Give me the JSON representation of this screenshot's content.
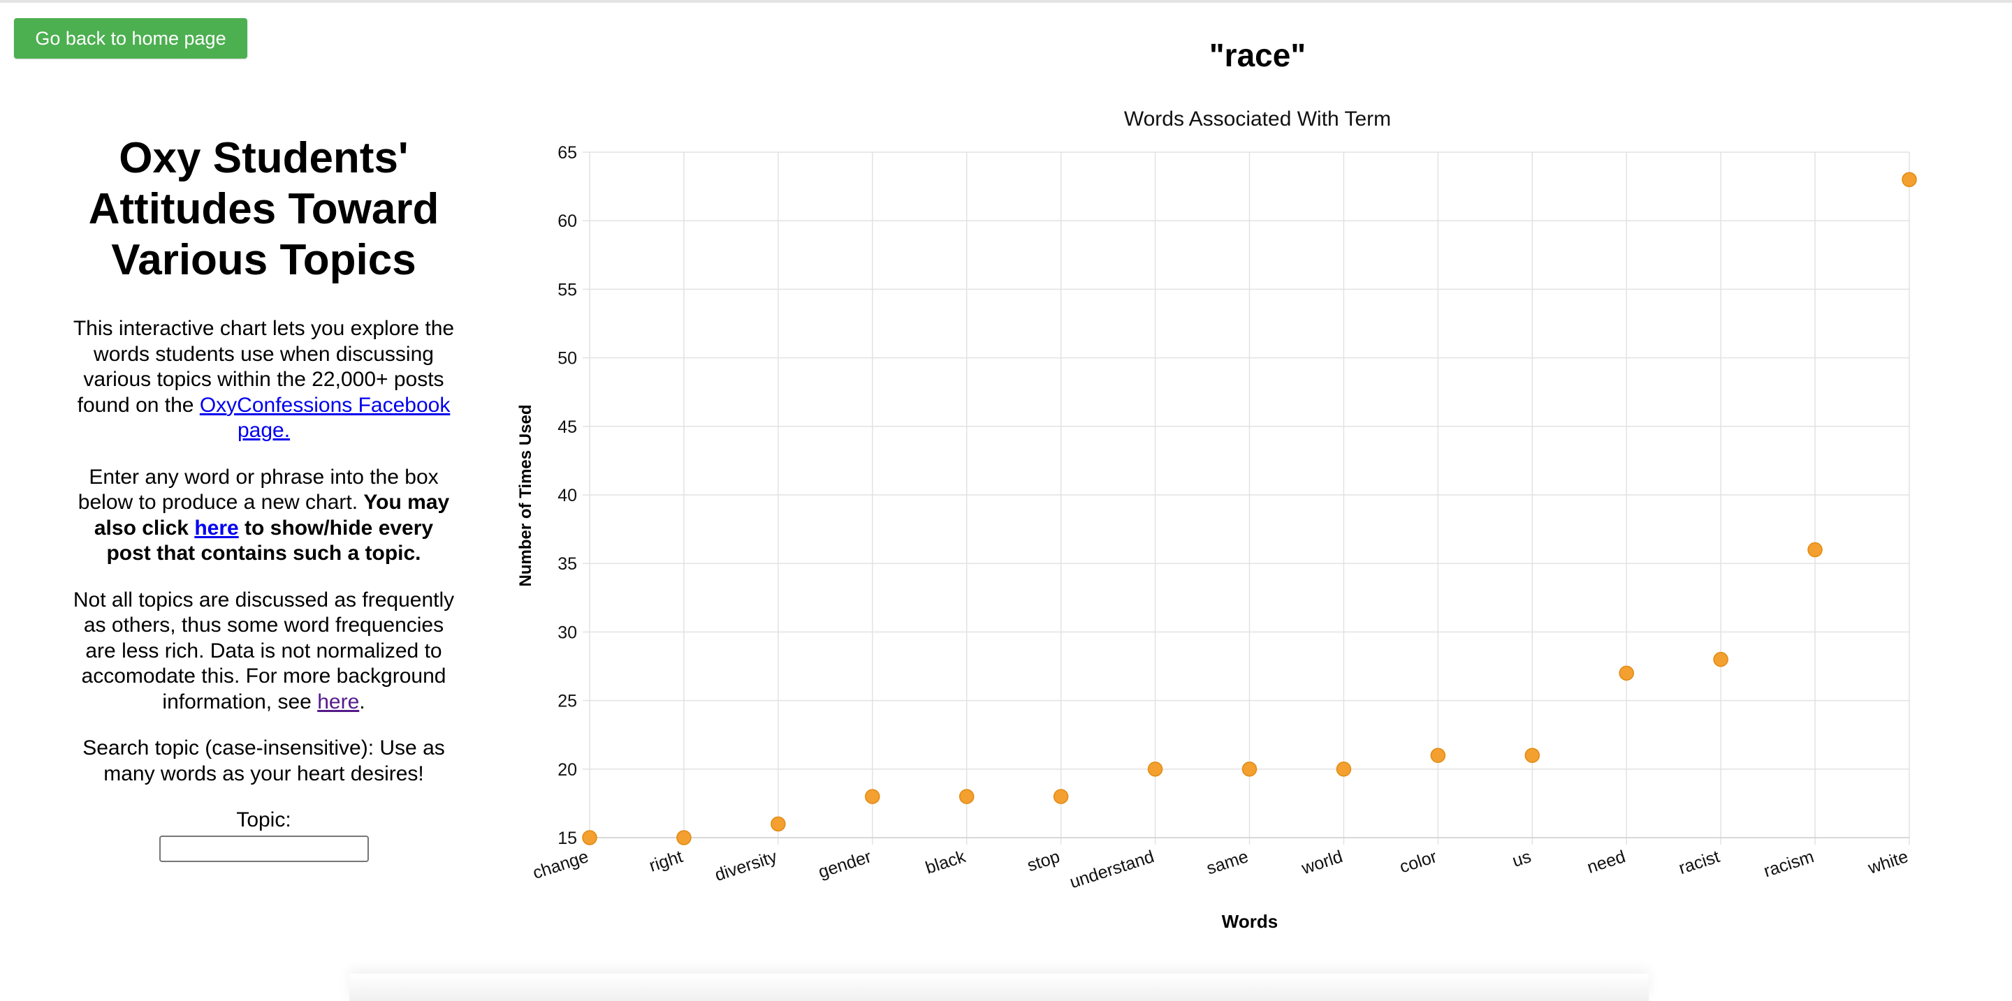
{
  "header": {
    "back_button_label": "Go back to home page"
  },
  "sidebar": {
    "title": "Oxy Students' Attitudes Toward Various Topics",
    "intro_text": "This interactive chart lets you explore the words students use when discussing various topics within the 22,000+ posts found on the",
    "intro_link": "OxyConfessions Facebook page.",
    "instruction_text": "Enter any word or phrase into the box below to produce a new chart.",
    "instruction_bold_before": "You may also click",
    "instruction_link": "here",
    "instruction_bold_after": "to show/hide every post that contains such a topic.",
    "note_text": "Not all topics are discussed as frequently as others, thus some word frequencies are less rich. Data is not normalized to accomodate this. For more background information, see",
    "note_link": "here",
    "note_end": ".",
    "search_hint": "Search topic (case-insensitive): Use as many words as your heart desires!",
    "topic_label": "Topic:",
    "topic_value": ""
  },
  "main": {
    "term_title": "\"race\""
  },
  "chart_data": {
    "type": "scatter",
    "title": "Words Associated With Term",
    "xlabel": "Words",
    "ylabel": "Number of Times Used",
    "categories": [
      "change",
      "right",
      "diversity",
      "gender",
      "black",
      "stop",
      "understand",
      "same",
      "world",
      "color",
      "us",
      "need",
      "racist",
      "racism",
      "white"
    ],
    "values": [
      15,
      15,
      16,
      18,
      18,
      18,
      20,
      20,
      20,
      21,
      21,
      27,
      28,
      36,
      63
    ],
    "ylim": [
      15,
      65
    ],
    "yticks": [
      15,
      20,
      25,
      30,
      35,
      40,
      45,
      50,
      55,
      60,
      65
    ],
    "grid": true,
    "point_color": "#f4a030",
    "point_stroke": "#e08a10"
  }
}
